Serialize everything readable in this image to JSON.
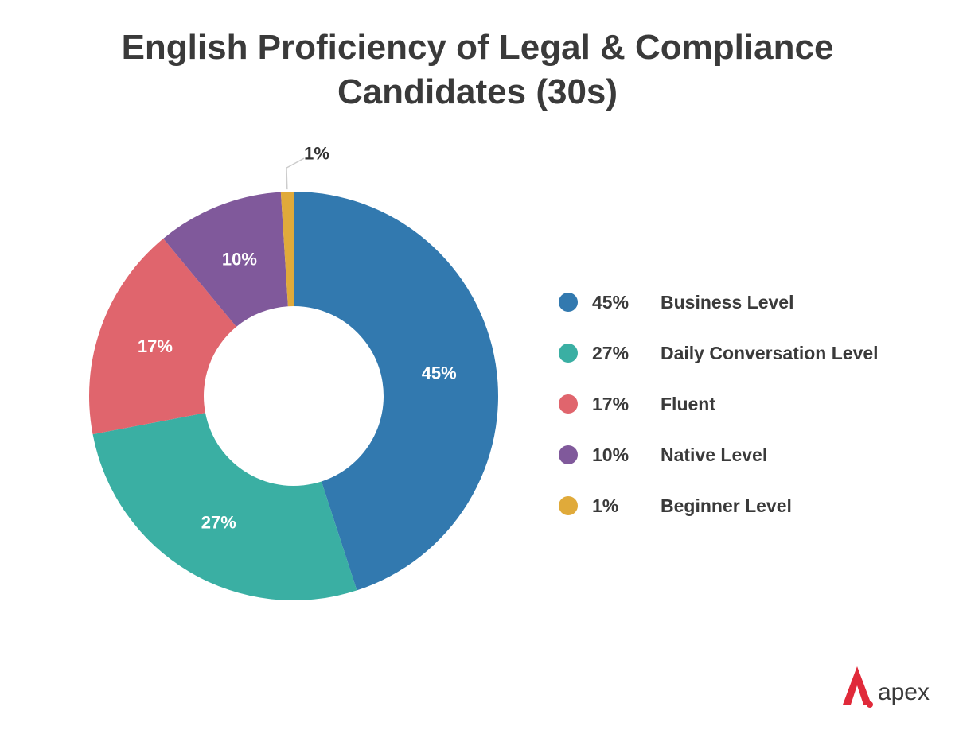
{
  "chart_data": {
    "type": "pie",
    "variant": "donut",
    "title_lines": [
      "English Proficiency of Legal & Compliance",
      "Candidates (30s)"
    ],
    "slices": [
      {
        "name": "Business Level",
        "value": 45,
        "label": "45%",
        "color": "#3279af"
      },
      {
        "name": "Daily Conversation Level",
        "value": 27,
        "label": "27%",
        "color": "#3aafa3"
      },
      {
        "name": "Fluent",
        "value": 17,
        "label": "17%",
        "color": "#e0656d"
      },
      {
        "name": "Native Level",
        "value": 10,
        "label": "10%",
        "color": "#80599b"
      },
      {
        "name": "Beginner Level",
        "value": 1,
        "label": "1%",
        "color": "#e0aa3a"
      }
    ],
    "legend": {
      "position": "right"
    },
    "grid": false
  },
  "brand": {
    "name": "apex",
    "logo_icon": "apex-logo-icon",
    "logo_color": "#e02a3a"
  }
}
